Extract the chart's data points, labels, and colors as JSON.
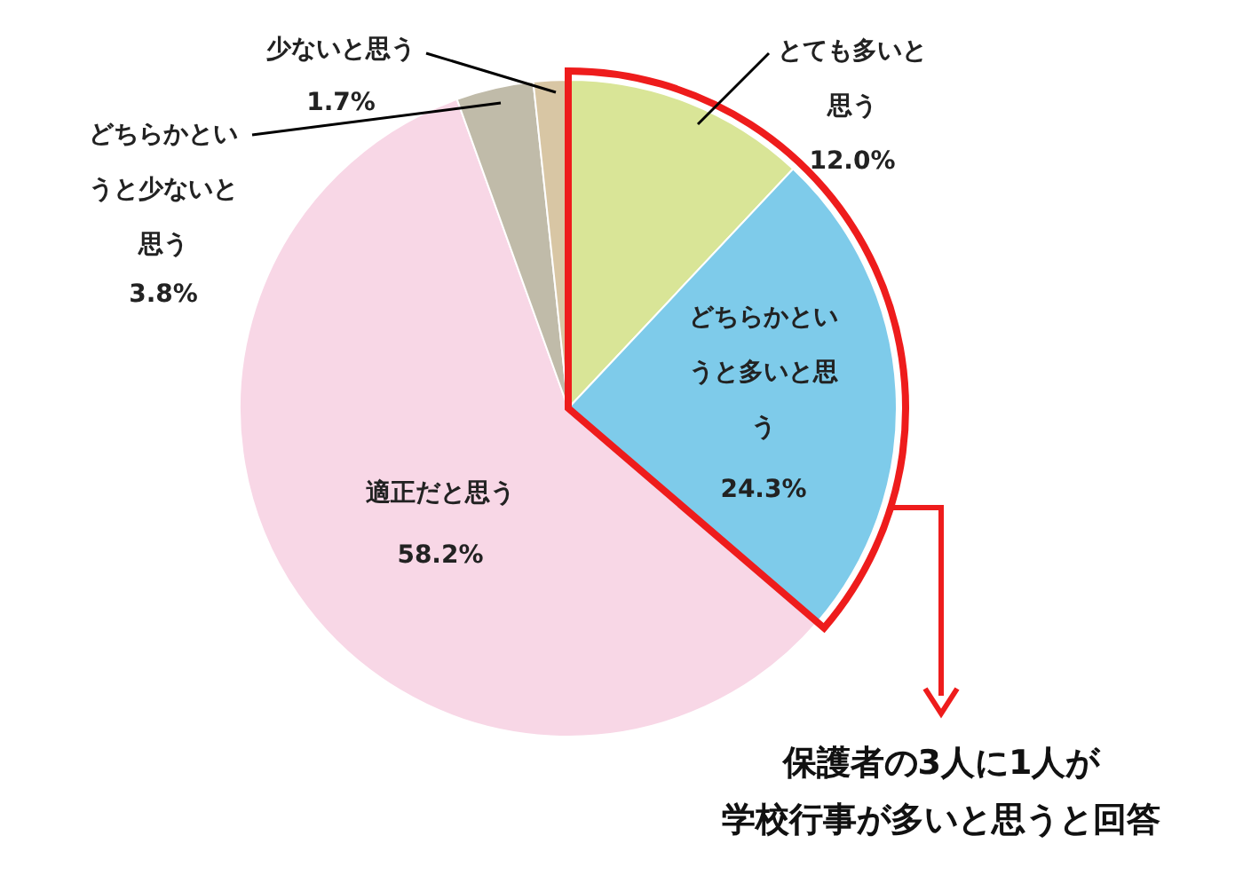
{
  "chart_data": {
    "type": "pie",
    "categories": [
      "とても多いと思う",
      "どちらかというと多いと思う",
      "適正だと思う",
      "どちらかというと少ないと思う",
      "少ないと思う"
    ],
    "values": [
      12.0,
      24.3,
      58.2,
      3.8,
      1.7
    ],
    "value_labels": [
      "12.0%",
      "24.3%",
      "58.2%",
      "3.8%",
      "1.7%"
    ],
    "colors": [
      "#d9e597",
      "#7ecbea",
      "#f8d7e6",
      "#c0bba9",
      "#d8c6a4"
    ],
    "annotations": [
      "保護者の3人に1人が",
      "学校行事が多いと思うと回答"
    ]
  }
}
